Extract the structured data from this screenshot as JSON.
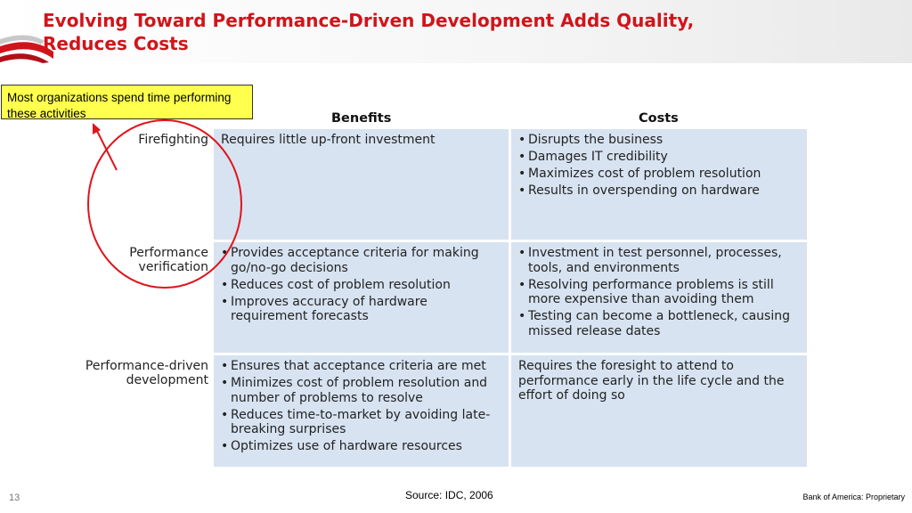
{
  "header": {
    "title": "Evolving Toward Performance-Driven Development Adds Quality, Reduces Costs"
  },
  "callout": {
    "text": "Most organizations spend time performing these activities"
  },
  "table": {
    "columns": [
      "Benefits",
      "Costs"
    ],
    "rows": [
      {
        "label": "Firefighting",
        "benefits_text": "Requires little up-front investment",
        "costs": [
          "Disrupts the business",
          "Damages IT credibility",
          "Maximizes cost of problem resolution",
          "Results in overspending on hardware"
        ]
      },
      {
        "label": "Performance verification",
        "benefits": [
          "Provides acceptance criteria for making go/no-go decisions",
          "Reduces cost of problem resolution",
          "Improves accuracy of hardware requirement forecasts"
        ],
        "costs": [
          "Investment in test personnel, processes, tools, and environments",
          "Resolving performance problems is still more expensive than avoiding them",
          "Testing can become a bottleneck, causing missed release dates"
        ]
      },
      {
        "label": "Performance-driven development",
        "benefits": [
          "Ensures that acceptance criteria are met",
          "Minimizes cost of problem resolution and number of problems to resolve",
          "Reduces time-to-market by avoiding late-breaking surprises",
          "Optimizes use of hardware resources"
        ],
        "costs_text": "Requires the foresight to attend to performance early in the life cycle and the effort of doing so"
      }
    ]
  },
  "footer": {
    "source": "Source: IDC, 2006",
    "page_number": "13",
    "proprietary": "Bank of America: Proprietary"
  },
  "colors": {
    "title_red": "#d1141b",
    "cell_blue": "#d7e3f1",
    "callout_yellow": "#ffff4d",
    "annotation_red": "#e0141b"
  }
}
